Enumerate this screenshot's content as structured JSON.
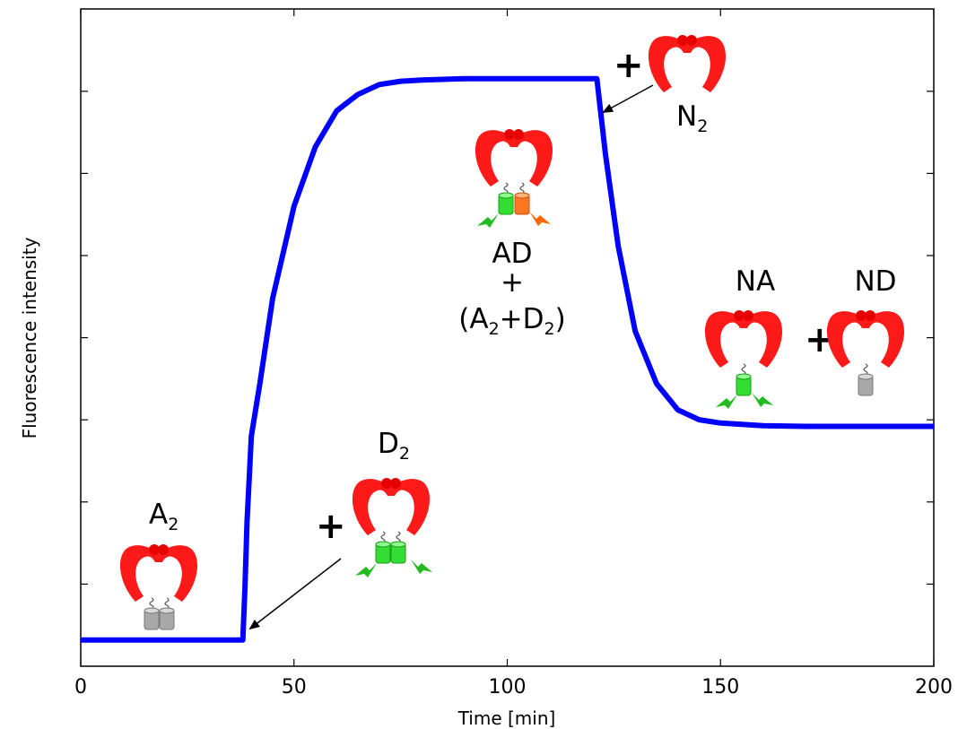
{
  "chart_data": {
    "type": "line",
    "xlabel": "Time [min]",
    "ylabel": "Fluorescence intensity",
    "xlim": [
      0,
      200
    ],
    "ylim": [
      0,
      1
    ],
    "xticks": [
      0,
      50,
      100,
      150,
      200
    ],
    "yticks_labeled": false,
    "grid": false,
    "series": [
      {
        "color": "#0000ff",
        "x": [
          0,
          38,
          38.5,
          39,
          40,
          42,
          45,
          50,
          55,
          60,
          65,
          70,
          75,
          80,
          90,
          100,
          110,
          121,
          123,
          126,
          130,
          135,
          140,
          145,
          150,
          155,
          160,
          170,
          180,
          190,
          200
        ],
        "y": [
          0.04,
          0.04,
          0.12,
          0.22,
          0.35,
          0.43,
          0.56,
          0.7,
          0.79,
          0.845,
          0.87,
          0.885,
          0.89,
          0.892,
          0.894,
          0.894,
          0.894,
          0.894,
          0.78,
          0.64,
          0.51,
          0.43,
          0.39,
          0.375,
          0.37,
          0.368,
          0.366,
          0.365,
          0.365,
          0.365,
          0.365
        ]
      }
    ],
    "annotations": [
      {
        "id": "a2",
        "text": "A",
        "sub": "2"
      },
      {
        "id": "d2",
        "text": "D",
        "sub": "2",
        "prefix": "+"
      },
      {
        "id": "ad",
        "lines": [
          "AD",
          "+",
          "(A+D)"
        ],
        "sub_line": {
          "pre": "(A",
          "s1": "2",
          "mid": "+D",
          "s2": "2",
          "post": ")"
        }
      },
      {
        "id": "n2",
        "text": "N",
        "sub": "2",
        "prefix": "+"
      },
      {
        "id": "na",
        "text": "NA"
      },
      {
        "id": "nd",
        "text": "ND"
      }
    ]
  },
  "glyphs": {
    "clamp_color": "#ff1a1a",
    "cylinder_gray": "#aaaaaa",
    "cylinder_green": "#33dd33",
    "cylinder_orange": "#ff7722",
    "lightning_green": "#22bb22",
    "lightning_orange": "#ff6600"
  },
  "labels": {
    "a2_main": "A",
    "a2_sub": "2",
    "d2_main": "D",
    "d2_sub": "2",
    "ad_l1": "AD",
    "ad_l2": "+",
    "ad_pre": "(A",
    "ad_s1": "2",
    "ad_mid": "+D",
    "ad_s2": "2",
    "ad_post": ")",
    "n2_main": "N",
    "n2_sub": "2",
    "na": "NA",
    "nd": "ND",
    "plus": "+"
  }
}
